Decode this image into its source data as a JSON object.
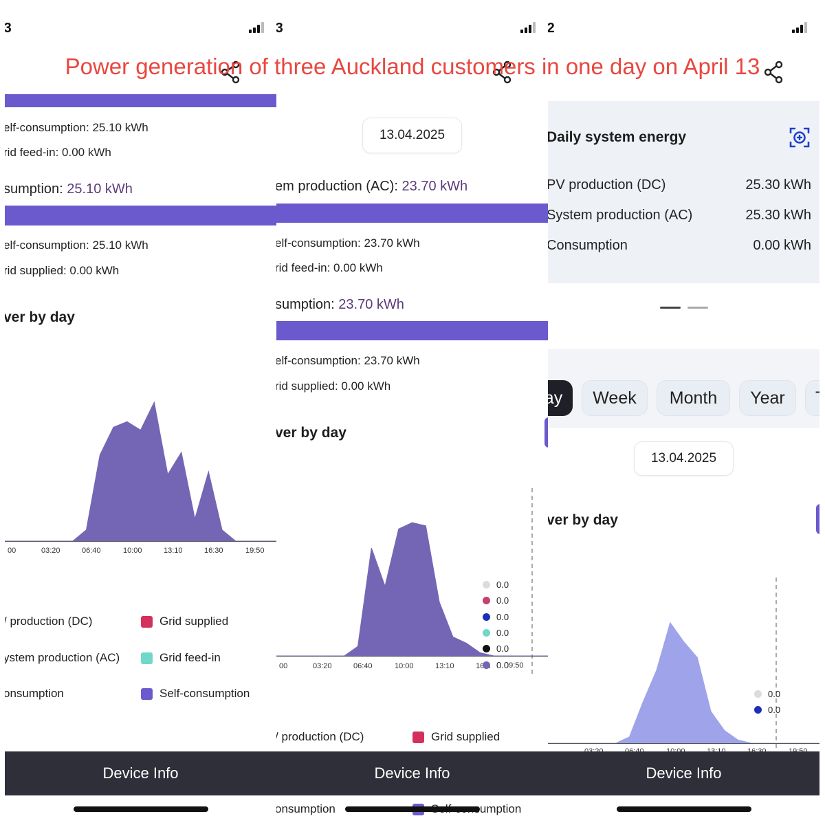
{
  "title": "Power generation of three Auckland customers in one day on April 13",
  "panels": [
    {
      "status_time": ":3",
      "self_consumption_top": "elf-consumption: 25.10 kWh",
      "grid_feed_in": "rid feed-in: 0.00 kWh",
      "consumption_label": "sumption: ",
      "consumption_value": "25.10 kWh",
      "self_consumption_2": "elf-consumption: 25.10 kWh",
      "grid_supplied": "rid supplied: 0.00 kWh",
      "power_by_day": "ver by day",
      "legend": {
        "pv_production": "/ production (DC)",
        "system_production": "ystem production (AC)",
        "consumption": "onsumption",
        "grid_supplied": "Grid supplied",
        "grid_feed_in": "Grid feed-in",
        "self_consumption": "Self-consumption"
      },
      "footer": "Device Info"
    },
    {
      "status_time": ":3",
      "date": "13.04.2025",
      "system_production_label": "em production (AC): ",
      "system_production_value": "23.70 kWh",
      "self_consumption_top": "elf-consumption: 23.70 kWh",
      "grid_feed_in": "rid feed-in: 0.00 kWh",
      "consumption_label": "sumption: ",
      "consumption_value": "23.70 kWh",
      "self_consumption_2": "elf-consumption: 23.70 kWh",
      "grid_supplied": "rid supplied: 0.00 kWh",
      "power_by_day": "ver by day",
      "dot_values": [
        "0.0",
        "0.0",
        "0.0",
        "0.0",
        "0.0",
        "0.0"
      ],
      "last_tick_overlap": "9:50",
      "legend": {
        "pv_production": "/ production (DC)",
        "grid_supplied": "Grid supplied",
        "consumption": "onsumption",
        "self_consumption": "Self-consumption"
      },
      "footer": "Device Info"
    },
    {
      "status_time": ":2",
      "daily_energy_title": "Daily system energy",
      "rows": [
        {
          "label": "PV production (DC)",
          "value": "25.30 kWh"
        },
        {
          "label": "System production (AC)",
          "value": "25.30 kWh"
        },
        {
          "label": "Consumption",
          "value": "0.00 kWh"
        }
      ],
      "tabs": [
        "ay",
        "Week",
        "Month",
        "Year",
        "T"
      ],
      "date": "13.04.2025",
      "power_by_day": "ver by day",
      "dot_values": [
        "0.0",
        "0.0"
      ],
      "footer": "Device Info"
    }
  ],
  "chart_data": [
    {
      "type": "area",
      "x_ticks": [
        "00",
        "03:20",
        "06:40",
        "10:00",
        "13:10",
        "16:30",
        "19:50"
      ],
      "series": [
        {
          "values": [
            0,
            0,
            0,
            0,
            0,
            0,
            0.4,
            3.1,
            4.1,
            4.3,
            4.0,
            5.0,
            2.4,
            3.2,
            0.8,
            2.5,
            0.4,
            0,
            0,
            0,
            0
          ]
        }
      ],
      "color": "#7466b5"
    },
    {
      "type": "area",
      "x_ticks": [
        "00",
        "03:20",
        "06:40",
        "10:00",
        "13:10",
        "16:3"
      ],
      "series": [
        {
          "values": [
            0,
            0,
            0,
            0,
            0,
            0,
            0.3,
            3.4,
            2.2,
            4.0,
            4.2,
            4.1,
            1.7,
            0.6,
            0.4,
            0.1,
            0,
            0,
            0,
            0,
            0
          ]
        }
      ],
      "color": "#7466b5"
    },
    {
      "type": "area",
      "x_ticks": [
        "",
        "03:20",
        "06:40",
        "10:00",
        "13:10",
        "16:30",
        "19:50"
      ],
      "series": [
        {
          "values": [
            0,
            0,
            0,
            0,
            0,
            0,
            0.2,
            1.3,
            2.3,
            3.8,
            3.2,
            2.7,
            1.0,
            0.4,
            0.1,
            0,
            0,
            0,
            0,
            0,
            0
          ]
        }
      ],
      "color": "#9ea3ea"
    }
  ],
  "colors": {
    "title": "#e8473f",
    "bar": "#6a5acd",
    "value_text": "#5b3a7a",
    "grid_supplied": "#d4305e",
    "grid_feed_in": "#6fd8c8",
    "self_consumption": "#6a5acd",
    "footer": "#2e2f38"
  },
  "icons": [
    "signal-icon",
    "share-icon",
    "camera-scan-icon"
  ]
}
